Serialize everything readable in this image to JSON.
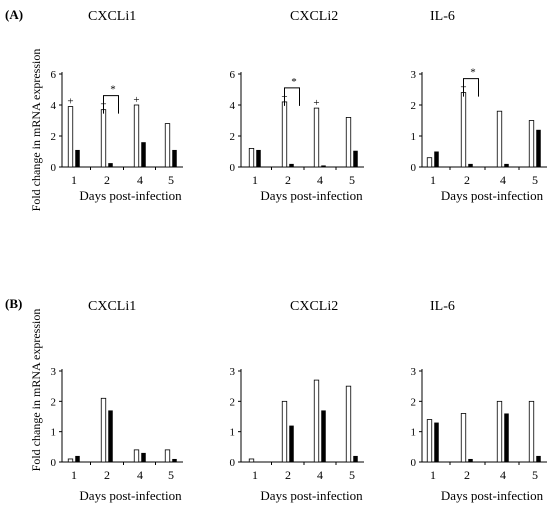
{
  "figure": {
    "ylabel": "Fold change in mRNA expression",
    "xlabel": "Days post-infection"
  },
  "panels": [
    {
      "letter": "(A)"
    },
    {
      "letter": "(B)"
    }
  ],
  "chart_data": [
    {
      "type": "bar",
      "panel": "(A)",
      "title": "CXCLi1",
      "categories": [
        "1",
        "2",
        "4",
        "5"
      ],
      "ylim": [
        0,
        6
      ],
      "yticks": [
        0,
        2,
        4,
        6
      ],
      "series": [
        {
          "fill": "#ffffff",
          "values": [
            3.9,
            3.7,
            4.0,
            2.8
          ]
        },
        {
          "fill": "#000000",
          "values": [
            1.1,
            0.25,
            1.6,
            1.1
          ]
        }
      ],
      "markers": [
        {
          "category": "1",
          "series": 0,
          "text": "+"
        },
        {
          "category": "2",
          "series": 0,
          "text": "+"
        },
        {
          "category": "4",
          "series": 0,
          "text": "+"
        }
      ],
      "significance": [
        {
          "category": "2",
          "text": "*"
        }
      ]
    },
    {
      "type": "bar",
      "panel": "(A)",
      "title": "CXCLi2",
      "categories": [
        "1",
        "2",
        "4",
        "5"
      ],
      "ylim": [
        0,
        6
      ],
      "yticks": [
        0,
        2,
        4,
        6
      ],
      "series": [
        {
          "fill": "#ffffff",
          "values": [
            1.2,
            4.2,
            3.8,
            3.2
          ]
        },
        {
          "fill": "#000000",
          "values": [
            1.1,
            0.2,
            0.1,
            1.05
          ]
        }
      ],
      "markers": [
        {
          "category": "2",
          "series": 0,
          "text": "+"
        },
        {
          "category": "4",
          "series": 0,
          "text": "+"
        }
      ],
      "significance": [
        {
          "category": "2",
          "text": "*"
        }
      ]
    },
    {
      "type": "bar",
      "panel": "(A)",
      "title": "IL-6",
      "categories": [
        "1",
        "2",
        "4",
        "5"
      ],
      "ylim": [
        0,
        3
      ],
      "yticks": [
        0,
        1,
        2,
        3
      ],
      "series": [
        {
          "fill": "#ffffff",
          "values": [
            0.3,
            2.4,
            1.8,
            1.5
          ]
        },
        {
          "fill": "#000000",
          "values": [
            0.5,
            0.1,
            0.1,
            1.2
          ]
        }
      ],
      "markers": [
        {
          "category": "2",
          "series": 0,
          "text": "+"
        }
      ],
      "significance": [
        {
          "category": "2",
          "text": "*"
        }
      ]
    },
    {
      "type": "bar",
      "panel": "(B)",
      "title": "CXCLi1",
      "categories": [
        "1",
        "2",
        "4",
        "5"
      ],
      "ylim": [
        0,
        3
      ],
      "yticks": [
        0,
        1,
        2,
        3
      ],
      "series": [
        {
          "fill": "#ffffff",
          "values": [
            0.1,
            2.1,
            0.4,
            0.4
          ]
        },
        {
          "fill": "#000000",
          "values": [
            0.2,
            1.7,
            0.3,
            0.1
          ]
        }
      ],
      "markers": [],
      "significance": []
    },
    {
      "type": "bar",
      "panel": "(B)",
      "title": "CXCLi2",
      "categories": [
        "1",
        "2",
        "4",
        "5"
      ],
      "ylim": [
        0,
        3
      ],
      "yticks": [
        0,
        1,
        2,
        3
      ],
      "series": [
        {
          "fill": "#ffffff",
          "values": [
            0.1,
            2.0,
            2.7,
            2.5
          ]
        },
        {
          "fill": "#000000",
          "values": [
            0.0,
            1.2,
            1.7,
            0.2
          ]
        }
      ],
      "markers": [],
      "significance": []
    },
    {
      "type": "bar",
      "panel": "(B)",
      "title": "IL-6",
      "categories": [
        "1",
        "2",
        "4",
        "5"
      ],
      "ylim": [
        0,
        3
      ],
      "yticks": [
        0,
        1,
        2,
        3
      ],
      "series": [
        {
          "fill": "#ffffff",
          "values": [
            1.4,
            1.6,
            2.0,
            2.0
          ]
        },
        {
          "fill": "#000000",
          "values": [
            1.3,
            0.1,
            1.6,
            0.2
          ]
        }
      ],
      "markers": [],
      "significance": []
    }
  ]
}
